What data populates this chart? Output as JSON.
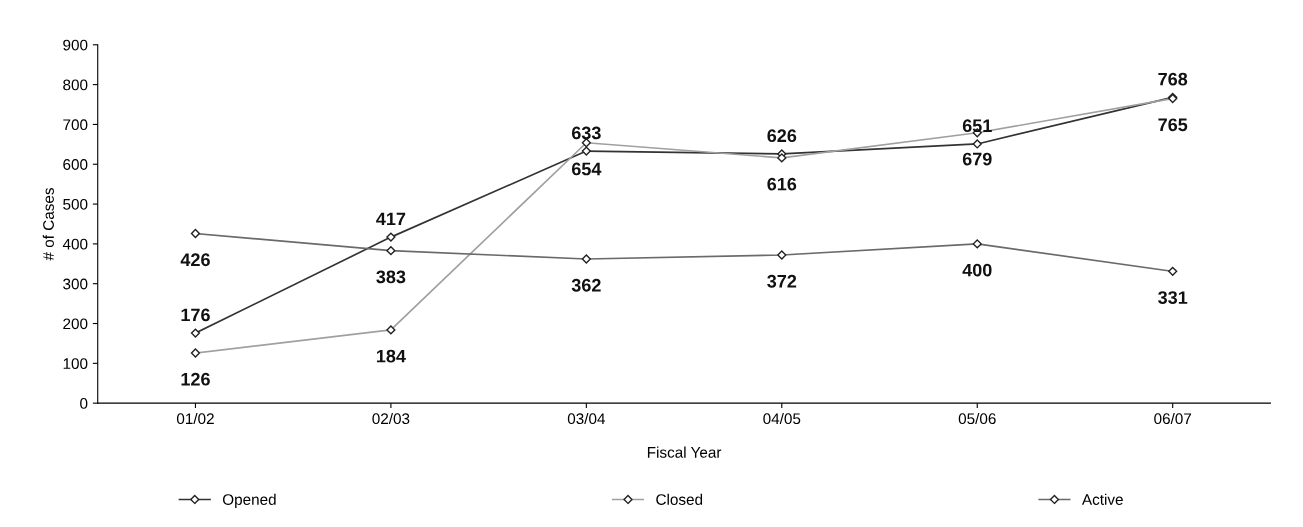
{
  "chart_data": {
    "type": "line",
    "xlabel": "Fiscal Year",
    "ylabel": "# of Cases",
    "categories": [
      "01/02",
      "02/03",
      "03/04",
      "04/05",
      "05/06",
      "06/07"
    ],
    "series": [
      {
        "name": "Opened",
        "color": "#333333",
        "values": [
          176,
          417,
          633,
          626,
          651,
          768
        ]
      },
      {
        "name": "Closed",
        "color": "#a0a0a0",
        "values": [
          126,
          184,
          654,
          616,
          679,
          765
        ]
      },
      {
        "name": "Active",
        "color": "#6a6a6a",
        "values": [
          426,
          383,
          362,
          372,
          400,
          331
        ]
      }
    ],
    "ylim": [
      0,
      900
    ],
    "yticks": [
      0,
      100,
      200,
      300,
      400,
      500,
      600,
      700,
      800,
      900
    ],
    "data_labels": true,
    "legend": "bottom",
    "grid": false,
    "marker": "diamond",
    "line_style": "solid"
  }
}
